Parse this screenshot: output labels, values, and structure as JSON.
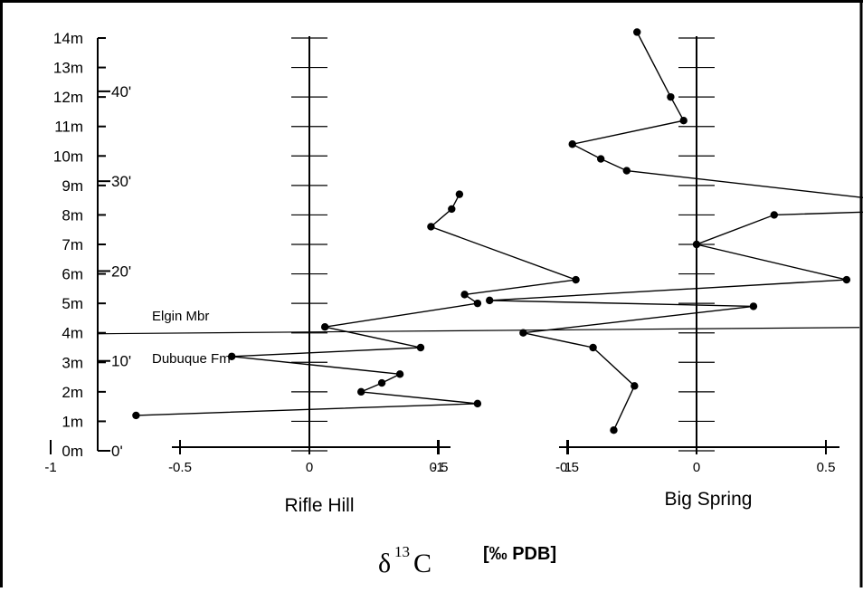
{
  "chart_data": {
    "type": "line",
    "y_axis": {
      "meter_labels": [
        "0m",
        "1m",
        "2m",
        "3m",
        "4m",
        "5m",
        "6m",
        "7m",
        "8m",
        "9m",
        "10m",
        "11m",
        "12m",
        "13m",
        "14m"
      ],
      "meter_values": [
        0,
        1,
        2,
        3,
        4,
        5,
        6,
        7,
        8,
        9,
        10,
        11,
        12,
        13,
        14
      ],
      "feet_labels": [
        "0'",
        "10'",
        "20'",
        "30'",
        "40'"
      ],
      "feet_values": [
        0,
        10,
        20,
        30,
        40
      ],
      "ylim": [
        0,
        14
      ]
    },
    "x_axis": {
      "tick_labels": [
        "-1",
        "-0.5",
        "0",
        "0.5",
        "1"
      ],
      "tick_values": [
        -1,
        -0.5,
        0,
        0.5,
        1
      ],
      "xlim": [
        -1,
        1
      ],
      "title": {
        "main": "δ",
        "sup": "13",
        "tail": "C",
        "unit": "[‰  PDB]"
      }
    },
    "boundary": {
      "y": 4.0,
      "upper_label": "Elgin Mbr",
      "lower_label": "Dubuque Fm"
    },
    "series": [
      {
        "name": "Rifle Hill",
        "points": [
          [
            -0.67,
            1.2
          ],
          [
            0.65,
            1.6
          ],
          [
            0.2,
            2.0
          ],
          [
            0.28,
            2.3
          ],
          [
            0.35,
            2.6
          ],
          [
            -0.3,
            3.2
          ],
          [
            0.43,
            3.5
          ],
          [
            0.06,
            4.2
          ],
          [
            0.65,
            5.0
          ],
          [
            0.6,
            5.3
          ],
          [
            1.03,
            5.8
          ],
          [
            0.47,
            7.6
          ],
          [
            0.55,
            8.2
          ],
          [
            0.58,
            8.7
          ]
        ]
      },
      {
        "name": "Big Spring",
        "points": [
          [
            -0.32,
            0.7
          ],
          [
            -0.24,
            2.2
          ],
          [
            -0.4,
            3.5
          ],
          [
            -0.67,
            4.0
          ],
          [
            0.22,
            4.9
          ],
          [
            -0.8,
            5.1
          ],
          [
            0.58,
            5.8
          ],
          [
            0.0,
            7.0
          ],
          [
            0.3,
            8.0
          ],
          [
            1.03,
            8.2
          ],
          [
            -0.27,
            9.5
          ],
          [
            -0.37,
            9.9
          ],
          [
            -0.48,
            10.4
          ],
          [
            -0.05,
            11.2
          ],
          [
            -0.1,
            12.0
          ],
          [
            -0.23,
            14.2
          ]
        ]
      }
    ]
  }
}
